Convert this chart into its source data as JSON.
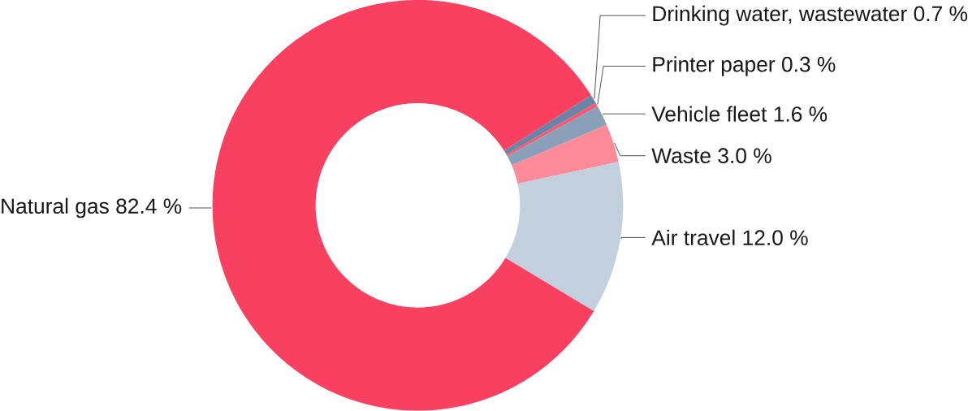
{
  "chart_data": {
    "type": "donut",
    "categories": [
      "Drinking water, wastewater",
      "Printer paper",
      "Vehicle fleet",
      "Waste",
      "Air travel",
      "Natural gas"
    ],
    "values": [
      0.7,
      0.3,
      1.6,
      3.0,
      12.0,
      82.4
    ],
    "value_labels": [
      "0.7 %",
      "0.3 %",
      "1.6 %",
      "3.0 %",
      "12.0 %",
      "82.4 %"
    ],
    "colors": [
      "#6a83a6",
      "#f9566f",
      "#8aa0b9",
      "#fc8a99",
      "#c2cfdc",
      "#f94060"
    ]
  }
}
